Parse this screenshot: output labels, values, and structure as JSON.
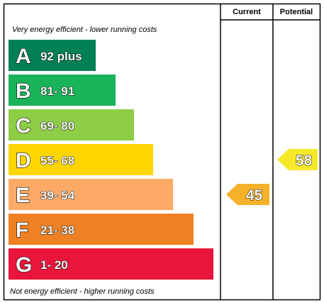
{
  "chart_data": {
    "type": "energy-rating",
    "columns": {
      "current": "Current",
      "potential": "Potential"
    },
    "top_note": "Very energy efficient - lower running costs",
    "bottom_note": "Not energy efficient - higher running costs",
    "bands": [
      {
        "letter": "A",
        "range": "92 plus",
        "min": 92,
        "max": 100,
        "color": "#008054"
      },
      {
        "letter": "B",
        "range": "81- 91",
        "min": 81,
        "max": 91,
        "color": "#19b459"
      },
      {
        "letter": "C",
        "range": "69- 80",
        "min": 69,
        "max": 80,
        "color": "#8dce46"
      },
      {
        "letter": "D",
        "range": "55- 68",
        "min": 55,
        "max": 68,
        "color": "#ffd500"
      },
      {
        "letter": "E",
        "range": "39- 54",
        "min": 39,
        "max": 54,
        "color": "#fcaa65"
      },
      {
        "letter": "F",
        "range": "21- 38",
        "min": 21,
        "max": 38,
        "color": "#ef8023"
      },
      {
        "letter": "G",
        "range": "1- 20",
        "min": 1,
        "max": 20,
        "color": "#e9153b"
      }
    ],
    "current": {
      "value": 45,
      "band": "E",
      "color": "#f6b12a"
    },
    "potential": {
      "value": 58,
      "band": "D",
      "color": "#f5e829"
    }
  }
}
